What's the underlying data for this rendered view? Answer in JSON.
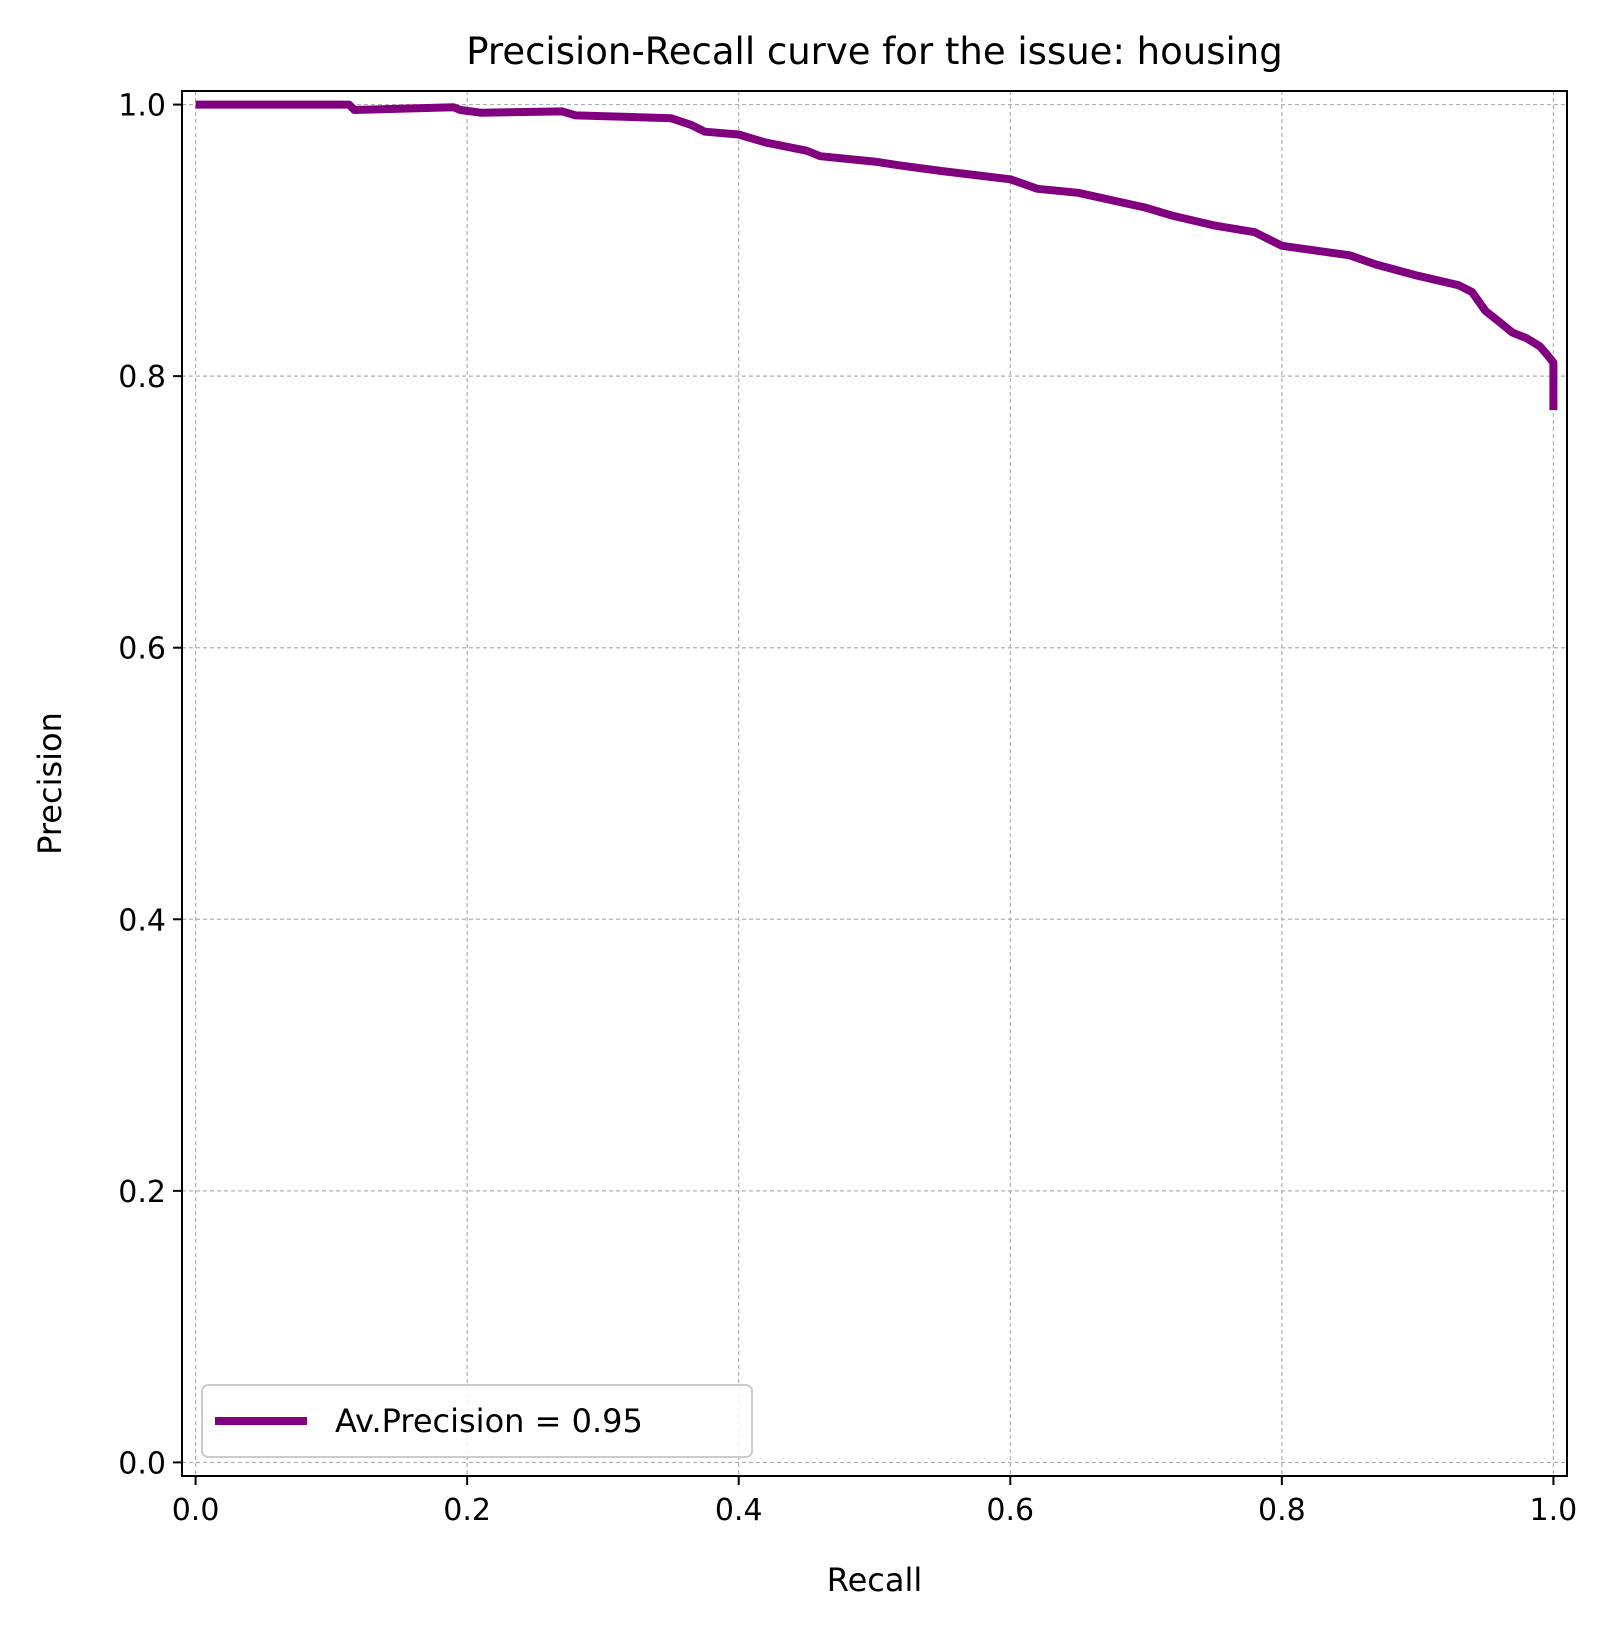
{
  "chart_data": {
    "type": "line",
    "title": "Precision-Recall curve for the issue: housing",
    "xlabel": "Recall",
    "ylabel": "Precision",
    "xlim": [
      -0.01,
      1.01
    ],
    "ylim": [
      -0.01,
      1.01
    ],
    "xticks": [
      "0.0",
      "0.2",
      "0.4",
      "0.6",
      "0.8",
      "1.0"
    ],
    "yticks": [
      "0.0",
      "0.2",
      "0.4",
      "0.6",
      "0.8",
      "1.0"
    ],
    "grid": true,
    "legend_position": "lower-left",
    "series": [
      {
        "name": "Av.Precision = 0.95",
        "color": "#800080",
        "x": [
          0.0,
          0.05,
          0.113,
          0.117,
          0.19,
          0.195,
          0.21,
          0.27,
          0.28,
          0.35,
          0.365,
          0.375,
          0.4,
          0.42,
          0.45,
          0.46,
          0.5,
          0.52,
          0.55,
          0.6,
          0.62,
          0.65,
          0.7,
          0.72,
          0.75,
          0.78,
          0.8,
          0.85,
          0.87,
          0.9,
          0.93,
          0.94,
          0.95,
          0.96,
          0.97,
          0.98,
          0.99,
          0.996,
          1.0,
          1.0
        ],
        "y": [
          1.0,
          1.0,
          1.0,
          0.996,
          0.998,
          0.996,
          0.994,
          0.995,
          0.992,
          0.99,
          0.985,
          0.98,
          0.978,
          0.972,
          0.966,
          0.962,
          0.958,
          0.955,
          0.951,
          0.945,
          0.938,
          0.935,
          0.924,
          0.918,
          0.911,
          0.906,
          0.896,
          0.889,
          0.882,
          0.874,
          0.867,
          0.862,
          0.848,
          0.84,
          0.832,
          0.828,
          0.822,
          0.815,
          0.81,
          0.775
        ]
      }
    ]
  }
}
